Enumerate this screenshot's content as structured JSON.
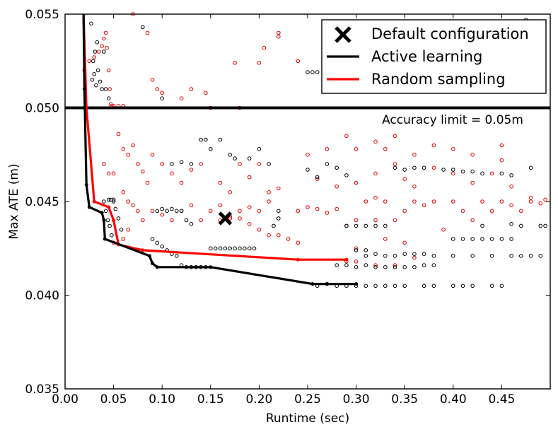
{
  "chart_data": {
    "type": "scatter",
    "title": "",
    "xlabel": "Runtime (sec)",
    "ylabel": "Max ATE (m)",
    "xlim": [
      0.0,
      0.5
    ],
    "ylim": [
      0.035,
      0.055
    ],
    "xticks": [
      0.0,
      0.05,
      0.1,
      0.15,
      0.2,
      0.25,
      0.3,
      0.35,
      0.4,
      0.45
    ],
    "xtick_labels": [
      "0.00",
      "0.05",
      "0.10",
      "0.15",
      "0.20",
      "0.25",
      "0.30",
      "0.35",
      "0.40",
      "0.45"
    ],
    "yticks": [
      0.035,
      0.04,
      0.045,
      0.05,
      0.055
    ],
    "ytick_labels": [
      "0.035",
      "0.040",
      "0.045",
      "0.050",
      "0.055"
    ],
    "legend_position": "top-right",
    "legend": [
      {
        "label": "Default configuration",
        "marker": "x",
        "color": "#000000"
      },
      {
        "label": "Active learning",
        "marker": "line",
        "color": "#000000"
      },
      {
        "label": "Random sampling",
        "marker": "line",
        "color": "#ff0000"
      }
    ],
    "accuracy_limit": {
      "y": 0.05,
      "label": "Accuracy limit = 0.05m"
    },
    "default_configuration": {
      "x": 0.165,
      "y": 0.0441
    },
    "active_learning_front": {
      "color": "#000000",
      "x": [
        0.019,
        0.02,
        0.022,
        0.025,
        0.038,
        0.04,
        0.041,
        0.087,
        0.09,
        0.095,
        0.15,
        0.255,
        0.3
      ],
      "y": [
        0.0555,
        0.051,
        0.0459,
        0.0447,
        0.0444,
        0.044,
        0.043,
        0.0421,
        0.0417,
        0.0415,
        0.0415,
        0.0406,
        0.0406
      ]
    },
    "random_sampling_front": {
      "color": "#ff0000",
      "x": [
        0.019,
        0.022,
        0.03,
        0.045,
        0.05,
        0.055,
        0.08,
        0.24,
        0.29
      ],
      "y": [
        0.0555,
        0.05,
        0.045,
        0.0447,
        0.044,
        0.0427,
        0.0424,
        0.0419,
        0.0419
      ]
    },
    "active_learning_samples": [
      [
        0.028,
        0.0515
      ],
      [
        0.03,
        0.0518
      ],
      [
        0.032,
        0.0512
      ],
      [
        0.034,
        0.052
      ],
      [
        0.036,
        0.0514
      ],
      [
        0.038,
        0.051
      ],
      [
        0.029,
        0.0525
      ],
      [
        0.031,
        0.053
      ],
      [
        0.033,
        0.0535
      ],
      [
        0.04,
        0.053
      ],
      [
        0.042,
        0.051
      ],
      [
        0.045,
        0.0505
      ],
      [
        0.027,
        0.0545
      ],
      [
        0.08,
        0.0543
      ],
      [
        0.04,
        0.045
      ],
      [
        0.042,
        0.0445
      ],
      [
        0.044,
        0.044
      ],
      [
        0.046,
        0.0437
      ],
      [
        0.048,
        0.0432
      ],
      [
        0.05,
        0.045
      ],
      [
        0.052,
        0.0446
      ],
      [
        0.055,
        0.0441
      ],
      [
        0.058,
        0.0435
      ],
      [
        0.045,
        0.0451
      ],
      [
        0.047,
        0.0451
      ],
      [
        0.05,
        0.0451
      ],
      [
        0.09,
        0.043
      ],
      [
        0.095,
        0.0428
      ],
      [
        0.1,
        0.0426
      ],
      [
        0.105,
        0.0424
      ],
      [
        0.11,
        0.0422
      ],
      [
        0.115,
        0.0421
      ],
      [
        0.12,
        0.0416
      ],
      [
        0.125,
        0.0415
      ],
      [
        0.13,
        0.0415
      ],
      [
        0.135,
        0.0415
      ],
      [
        0.14,
        0.0415
      ],
      [
        0.145,
        0.0415
      ],
      [
        0.15,
        0.0425
      ],
      [
        0.155,
        0.0425
      ],
      [
        0.16,
        0.0425
      ],
      [
        0.165,
        0.0425
      ],
      [
        0.17,
        0.0425
      ],
      [
        0.175,
        0.0425
      ],
      [
        0.18,
        0.0425
      ],
      [
        0.185,
        0.0425
      ],
      [
        0.19,
        0.0425
      ],
      [
        0.195,
        0.0425
      ],
      [
        0.095,
        0.0445
      ],
      [
        0.1,
        0.0446
      ],
      [
        0.105,
        0.0445
      ],
      [
        0.11,
        0.0446
      ],
      [
        0.115,
        0.0445
      ],
      [
        0.12,
        0.0445
      ],
      [
        0.125,
        0.044
      ],
      [
        0.13,
        0.0438
      ],
      [
        0.11,
        0.047
      ],
      [
        0.12,
        0.0471
      ],
      [
        0.13,
        0.047
      ],
      [
        0.14,
        0.0483
      ],
      [
        0.145,
        0.0483
      ],
      [
        0.15,
        0.0478
      ],
      [
        0.16,
        0.0483
      ],
      [
        0.17,
        0.0475
      ],
      [
        0.175,
        0.0473
      ],
      [
        0.19,
        0.0473
      ],
      [
        0.2,
        0.0478
      ],
      [
        0.21,
        0.047
      ],
      [
        0.22,
        0.0445
      ],
      [
        0.22,
        0.0441
      ],
      [
        0.215,
        0.0437
      ],
      [
        0.26,
        0.0405
      ],
      [
        0.27,
        0.0406
      ],
      [
        0.28,
        0.0405
      ],
      [
        0.29,
        0.0405
      ],
      [
        0.3,
        0.0405
      ],
      [
        0.31,
        0.0405
      ],
      [
        0.32,
        0.0405
      ],
      [
        0.33,
        0.0405
      ],
      [
        0.34,
        0.0405
      ],
      [
        0.35,
        0.0405
      ],
      [
        0.37,
        0.0405
      ],
      [
        0.38,
        0.0405
      ],
      [
        0.4,
        0.0405
      ],
      [
        0.41,
        0.0405
      ],
      [
        0.42,
        0.0405
      ],
      [
        0.44,
        0.0405
      ],
      [
        0.45,
        0.0405
      ],
      [
        0.28,
        0.0416
      ],
      [
        0.29,
        0.0416
      ],
      [
        0.3,
        0.0415
      ],
      [
        0.31,
        0.0416
      ],
      [
        0.32,
        0.0415
      ],
      [
        0.33,
        0.0415
      ],
      [
        0.34,
        0.0415
      ],
      [
        0.35,
        0.0415
      ],
      [
        0.36,
        0.0415
      ],
      [
        0.37,
        0.0416
      ],
      [
        0.38,
        0.0416
      ],
      [
        0.31,
        0.0421
      ],
      [
        0.32,
        0.0422
      ],
      [
        0.33,
        0.0421
      ],
      [
        0.34,
        0.0421
      ],
      [
        0.35,
        0.0422
      ],
      [
        0.36,
        0.0422
      ],
      [
        0.37,
        0.0422
      ],
      [
        0.38,
        0.0421
      ],
      [
        0.4,
        0.0421
      ],
      [
        0.42,
        0.0421
      ],
      [
        0.44,
        0.0421
      ],
      [
        0.46,
        0.0421
      ],
      [
        0.47,
        0.0421
      ],
      [
        0.48,
        0.0421
      ],
      [
        0.49,
        0.0421
      ],
      [
        0.3,
        0.0424
      ],
      [
        0.31,
        0.0424
      ],
      [
        0.4,
        0.043
      ],
      [
        0.41,
        0.043
      ],
      [
        0.42,
        0.043
      ],
      [
        0.43,
        0.043
      ],
      [
        0.44,
        0.043
      ],
      [
        0.45,
        0.043
      ],
      [
        0.46,
        0.043
      ],
      [
        0.25,
        0.0467
      ],
      [
        0.26,
        0.0463
      ],
      [
        0.27,
        0.047
      ],
      [
        0.28,
        0.0468
      ],
      [
        0.29,
        0.0464
      ],
      [
        0.34,
        0.0468
      ],
      [
        0.35,
        0.0467
      ],
      [
        0.36,
        0.0468
      ],
      [
        0.37,
        0.0468
      ],
      [
        0.39,
        0.0467
      ],
      [
        0.4,
        0.0467
      ],
      [
        0.41,
        0.0466
      ],
      [
        0.42,
        0.0466
      ],
      [
        0.43,
        0.0465
      ],
      [
        0.45,
        0.0465
      ],
      [
        0.46,
        0.0464
      ],
      [
        0.48,
        0.0468
      ],
      [
        0.29,
        0.0437
      ],
      [
        0.3,
        0.0437
      ],
      [
        0.31,
        0.0437
      ],
      [
        0.32,
        0.0437
      ],
      [
        0.33,
        0.0437
      ],
      [
        0.43,
        0.0437
      ],
      [
        0.46,
        0.0438
      ],
      [
        0.47,
        0.0437
      ],
      [
        0.49,
        0.0437
      ],
      [
        0.495,
        0.0437
      ],
      [
        0.25,
        0.0519
      ],
      [
        0.255,
        0.0519
      ],
      [
        0.26,
        0.0519
      ],
      [
        0.27,
        0.0515
      ],
      [
        0.28,
        0.0518
      ],
      [
        0.475,
        0.0547
      ],
      [
        0.1,
        0.0505
      ]
    ],
    "random_sampling_samples": [
      [
        0.02,
        0.052
      ],
      [
        0.025,
        0.0525
      ],
      [
        0.03,
        0.0527
      ],
      [
        0.035,
        0.053
      ],
      [
        0.038,
        0.0533
      ],
      [
        0.04,
        0.0537
      ],
      [
        0.042,
        0.054
      ],
      [
        0.043,
        0.0532
      ],
      [
        0.045,
        0.052
      ],
      [
        0.046,
        0.051
      ],
      [
        0.047,
        0.0502
      ],
      [
        0.048,
        0.0501
      ],
      [
        0.05,
        0.0501
      ],
      [
        0.055,
        0.0501
      ],
      [
        0.06,
        0.0501
      ],
      [
        0.07,
        0.055
      ],
      [
        0.085,
        0.054
      ],
      [
        0.09,
        0.0515
      ],
      [
        0.095,
        0.051
      ],
      [
        0.1,
        0.0508
      ],
      [
        0.12,
        0.0505
      ],
      [
        0.13,
        0.051
      ],
      [
        0.145,
        0.0508
      ],
      [
        0.15,
        0.05
      ],
      [
        0.175,
        0.0524
      ],
      [
        0.18,
        0.05
      ],
      [
        0.2,
        0.0524
      ],
      [
        0.205,
        0.0532
      ],
      [
        0.22,
        0.054
      ],
      [
        0.22,
        0.0538
      ],
      [
        0.24,
        0.0525
      ],
      [
        0.04,
        0.047
      ],
      [
        0.045,
        0.0465
      ],
      [
        0.05,
        0.0465
      ],
      [
        0.055,
        0.0486
      ],
      [
        0.06,
        0.0478
      ],
      [
        0.065,
        0.0475
      ],
      [
        0.07,
        0.048
      ],
      [
        0.075,
        0.047
      ],
      [
        0.08,
        0.0466
      ],
      [
        0.085,
        0.046
      ],
      [
        0.09,
        0.0475
      ],
      [
        0.1,
        0.047
      ],
      [
        0.11,
        0.0465
      ],
      [
        0.12,
        0.046
      ],
      [
        0.06,
        0.0455
      ],
      [
        0.065,
        0.045
      ],
      [
        0.07,
        0.0448
      ],
      [
        0.075,
        0.0445
      ],
      [
        0.08,
        0.044
      ],
      [
        0.09,
        0.0445
      ],
      [
        0.1,
        0.0443
      ],
      [
        0.11,
        0.044
      ],
      [
        0.12,
        0.0445
      ],
      [
        0.13,
        0.0448
      ],
      [
        0.14,
        0.044
      ],
      [
        0.15,
        0.0445
      ],
      [
        0.16,
        0.0448
      ],
      [
        0.17,
        0.0442
      ],
      [
        0.18,
        0.0445
      ],
      [
        0.19,
        0.0447
      ],
      [
        0.2,
        0.0445
      ],
      [
        0.21,
        0.045
      ],
      [
        0.13,
        0.0467
      ],
      [
        0.14,
        0.047
      ],
      [
        0.16,
        0.046
      ],
      [
        0.17,
        0.0455
      ],
      [
        0.18,
        0.047
      ],
      [
        0.19,
        0.0463
      ],
      [
        0.2,
        0.047
      ],
      [
        0.21,
        0.0455
      ],
      [
        0.22,
        0.0457
      ],
      [
        0.16,
        0.044
      ],
      [
        0.17,
        0.0441
      ],
      [
        0.18,
        0.0441
      ],
      [
        0.19,
        0.0438
      ],
      [
        0.2,
        0.0435
      ],
      [
        0.21,
        0.0432
      ],
      [
        0.24,
        0.0445
      ],
      [
        0.25,
        0.0447
      ],
      [
        0.26,
        0.0446
      ],
      [
        0.27,
        0.0444
      ],
      [
        0.28,
        0.0446
      ],
      [
        0.29,
        0.0437
      ],
      [
        0.3,
        0.044
      ],
      [
        0.31,
        0.045
      ],
      [
        0.32,
        0.0452
      ],
      [
        0.33,
        0.045
      ],
      [
        0.34,
        0.044
      ],
      [
        0.35,
        0.0445
      ],
      [
        0.36,
        0.045
      ],
      [
        0.37,
        0.0448
      ],
      [
        0.38,
        0.045
      ],
      [
        0.26,
        0.0462
      ],
      [
        0.28,
        0.0458
      ],
      [
        0.3,
        0.046
      ],
      [
        0.32,
        0.0465
      ],
      [
        0.34,
        0.047
      ],
      [
        0.35,
        0.0462
      ],
      [
        0.36,
        0.0458
      ],
      [
        0.38,
        0.0468
      ],
      [
        0.4,
        0.0465
      ],
      [
        0.42,
        0.046
      ],
      [
        0.44,
        0.0465
      ],
      [
        0.46,
        0.0458
      ],
      [
        0.48,
        0.0452
      ],
      [
        0.39,
        0.0435
      ],
      [
        0.4,
        0.045
      ],
      [
        0.41,
        0.0445
      ],
      [
        0.42,
        0.044
      ],
      [
        0.43,
        0.045
      ],
      [
        0.44,
        0.0445
      ],
      [
        0.45,
        0.045
      ],
      [
        0.46,
        0.0448
      ],
      [
        0.47,
        0.0445
      ],
      [
        0.48,
        0.045
      ],
      [
        0.49,
        0.0449
      ],
      [
        0.495,
        0.0451
      ],
      [
        0.3,
        0.0478
      ],
      [
        0.32,
        0.0482
      ],
      [
        0.34,
        0.0485
      ],
      [
        0.36,
        0.0475
      ],
      [
        0.38,
        0.048
      ],
      [
        0.4,
        0.0478
      ],
      [
        0.42,
        0.0475
      ],
      [
        0.45,
        0.048
      ],
      [
        0.45,
        0.0472
      ],
      [
        0.25,
        0.0475
      ],
      [
        0.27,
        0.0478
      ],
      [
        0.29,
        0.0485
      ],
      [
        0.33,
        0.0478
      ],
      [
        0.22,
        0.0432
      ],
      [
        0.23,
        0.043
      ],
      [
        0.24,
        0.0428
      ],
      [
        0.33,
        0.043
      ],
      [
        0.35,
        0.0428
      ],
      [
        0.32,
        0.044
      ],
      [
        0.29,
        0.0418
      ],
      [
        0.3,
        0.0418
      ],
      [
        0.32,
        0.0416
      ],
      [
        0.34,
        0.0416
      ],
      [
        0.36,
        0.042
      ],
      [
        0.3,
        0.0425
      ],
      [
        0.05,
        0.0428
      ],
      [
        0.06,
        0.043
      ],
      [
        0.065,
        0.0435
      ]
    ]
  }
}
